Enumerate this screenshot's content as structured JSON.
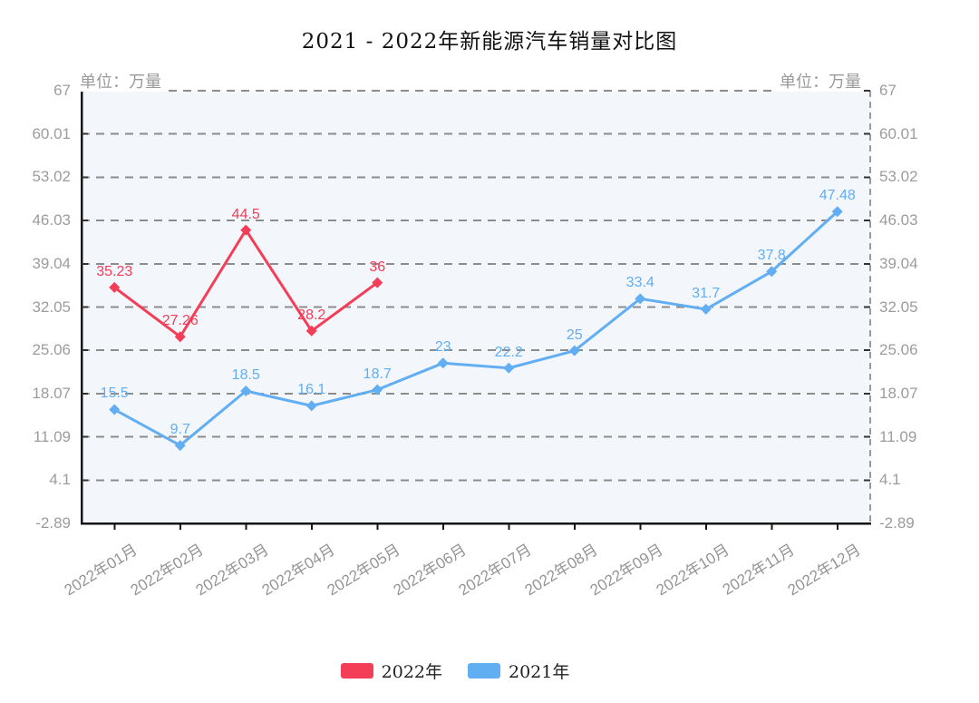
{
  "title": "2021 - 2022年新能源汽车销量对比图",
  "axis_unit_left": "单位：万量",
  "axis_unit_right": "单位：万量",
  "legend": [
    {
      "label": "2022年",
      "color": "#f43d57"
    },
    {
      "label": "2021年",
      "color": "#61aef3"
    }
  ],
  "chart_data": {
    "type": "line",
    "title": "2021 - 2022年新能源汽车销量对比图",
    "ylabel": "单位：万量",
    "categories": [
      "2022年01月",
      "2022年02月",
      "2022年03月",
      "2022年04月",
      "2022年05月",
      "2022年06月",
      "2022年07月",
      "2022年08月",
      "2022年09月",
      "2022年10月",
      "2022年11月",
      "2022年12月"
    ],
    "series": [
      {
        "name": "2022年",
        "color": "#f43d57",
        "values": [
          35.23,
          27.26,
          44.5,
          28.2,
          36
        ]
      },
      {
        "name": "2021年",
        "color": "#61aef3",
        "values": [
          15.5,
          9.7,
          18.5,
          16.1,
          18.7,
          23,
          22.2,
          25,
          33.4,
          31.7,
          37.8,
          47.48
        ]
      }
    ],
    "y_ticks": [
      67,
      60.01,
      53.02,
      46.03,
      39.04,
      32.05,
      25.06,
      18.07,
      11.09,
      4.1,
      -2.89
    ],
    "ylim": [
      -2.89,
      67
    ],
    "grid": true,
    "grid_style": "dashed",
    "legend_position": "bottom",
    "plot_background": "#f3f6fb",
    "grid_color": "#8c8c8c",
    "axis_color": "#141414",
    "tick_label_color": "#9c9c9c",
    "marker": "diamond",
    "data_labels": true
  }
}
